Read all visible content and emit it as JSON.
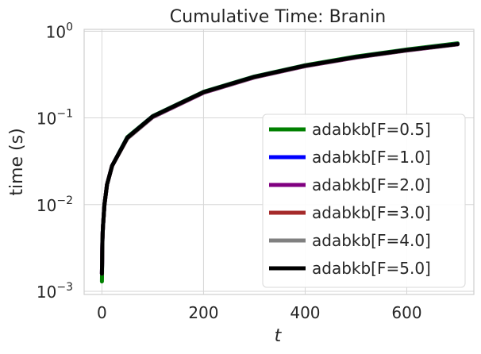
{
  "chart_data": {
    "type": "line",
    "title": "Cumulative Time: Branin",
    "xlabel": "t",
    "ylabel": "time (s)",
    "xlim": [
      -35,
      732
    ],
    "ylim": [
      0.00092,
      1.05
    ],
    "yscale": "log",
    "grid": true,
    "legend_position": "lower-right",
    "xticks": [
      {
        "value": 0,
        "label": "0"
      },
      {
        "value": 200,
        "label": "200"
      },
      {
        "value": 400,
        "label": "400"
      },
      {
        "value": 600,
        "label": "600"
      }
    ],
    "yticks": [
      {
        "value": 0.001,
        "base": "10",
        "exp": "−3"
      },
      {
        "value": 0.01,
        "base": "10",
        "exp": "−2"
      },
      {
        "value": 0.1,
        "base": "10",
        "exp": "−1"
      },
      {
        "value": 1,
        "base": "10",
        "exp": "0"
      }
    ],
    "series": [
      {
        "name": "adabkb[F=0.5]",
        "color": "#008000",
        "x": [
          0,
          1,
          2,
          5,
          10,
          20,
          50,
          100,
          200,
          300,
          400,
          500,
          600,
          700
        ],
        "y": [
          0.0013,
          0.004,
          0.0055,
          0.01,
          0.017,
          0.028,
          0.06,
          0.105,
          0.2,
          0.3,
          0.405,
          0.51,
          0.615,
          0.725
        ]
      },
      {
        "name": "adabkb[F=1.0]",
        "color": "#0000ff",
        "x": [
          0,
          1,
          2,
          5,
          10,
          20,
          50,
          100,
          200,
          300,
          400,
          500,
          600,
          700
        ],
        "y": [
          0.0016,
          0.004,
          0.0055,
          0.01,
          0.017,
          0.028,
          0.059,
          0.104,
          0.198,
          0.297,
          0.4,
          0.503,
          0.606,
          0.712
        ]
      },
      {
        "name": "adabkb[F=2.0]",
        "color": "#800080",
        "x": [
          0,
          1,
          2,
          5,
          10,
          20,
          50,
          100,
          200,
          300,
          400,
          500,
          600,
          700
        ],
        "y": [
          0.0016,
          0.004,
          0.0055,
          0.01,
          0.017,
          0.028,
          0.058,
          0.102,
          0.195,
          0.293,
          0.395,
          0.497,
          0.599,
          0.705
        ]
      },
      {
        "name": "adabkb[F=3.0]",
        "color": "#a52a2a",
        "x": [
          0,
          1,
          2,
          5,
          10,
          20,
          50,
          100,
          200,
          300,
          400,
          500,
          600,
          700
        ],
        "y": [
          0.0016,
          0.004,
          0.0055,
          0.01,
          0.017,
          0.028,
          0.058,
          0.103,
          0.197,
          0.295,
          0.398,
          0.5,
          0.603,
          0.708
        ]
      },
      {
        "name": "adabkb[F=4.0]",
        "color": "#808080",
        "x": [
          0,
          1,
          2,
          5,
          10,
          20,
          50,
          100,
          200,
          300,
          400,
          500,
          600,
          700
        ],
        "y": [
          0.0016,
          0.004,
          0.0055,
          0.01,
          0.017,
          0.028,
          0.058,
          0.103,
          0.197,
          0.295,
          0.398,
          0.5,
          0.603,
          0.708
        ]
      },
      {
        "name": "adabkb[F=5.0]",
        "color": "#000000",
        "x": [
          0,
          1,
          2,
          5,
          10,
          20,
          50,
          100,
          200,
          300,
          400,
          500,
          600,
          700
        ],
        "y": [
          0.0016,
          0.004,
          0.0055,
          0.01,
          0.017,
          0.028,
          0.059,
          0.104,
          0.198,
          0.297,
          0.4,
          0.503,
          0.606,
          0.71
        ]
      }
    ]
  }
}
